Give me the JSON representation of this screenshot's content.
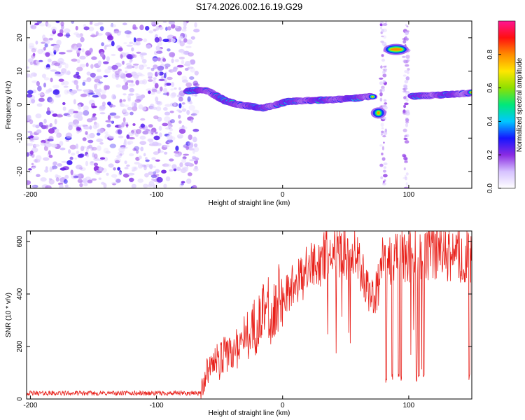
{
  "figure": {
    "title": "S174.2026.002.16.19.G29"
  },
  "chart_data": [
    {
      "type": "heatmap",
      "xlabel": "Height of straight line (km)",
      "ylabel": "Frequency (Hz)",
      "xlim": [
        -203,
        150
      ],
      "ylim": [
        -25,
        25
      ],
      "xticks": [
        -200,
        -100,
        0,
        100
      ],
      "yticks": [
        -20,
        -10,
        0,
        10,
        20
      ],
      "colorbar": {
        "label": "Normalized spectral amplitude",
        "range": [
          0,
          1
        ],
        "ticks": [
          "0.0",
          "0.2",
          "0.4",
          "0.6",
          "0.8"
        ],
        "stops": [
          "#ffffff",
          "#d6c2ff",
          "#8a2be2",
          "#1515ff",
          "#00c8ff",
          "#00e87a",
          "#8ee000",
          "#ffe600",
          "#ff8c00",
          "#ff1010",
          "#ff1493"
        ]
      },
      "ridge": {
        "x": [
          -75,
          -65,
          -58,
          -52,
          -45,
          -35,
          -25,
          -15,
          -5,
          5,
          20,
          40,
          60,
          72
        ],
        "y": [
          4,
          4.5,
          4,
          2.5,
          1,
          0,
          -0.5,
          -1,
          0,
          1,
          1.2,
          1.5,
          2,
          2.5
        ]
      },
      "ridge_right": {
        "x": [
          103,
          115,
          130,
          150
        ],
        "y": [
          2.5,
          2.7,
          3,
          3.5
        ]
      },
      "blobs": [
        {
          "x": 76,
          "y": -2.5,
          "value": 0.8
        },
        {
          "x": 90,
          "y": 16.5,
          "value": 0.8
        }
      ],
      "noise_region": {
        "x": [
          -203,
          -68
        ],
        "y": [
          -25,
          25
        ]
      },
      "gap_columns_x": [
        80,
        98
      ]
    },
    {
      "type": "line",
      "xlabel": "Height of straight line (km)",
      "ylabel": "SNR (10 * v/v)",
      "xlim": [
        -203,
        150
      ],
      "ylim": [
        0,
        640
      ],
      "xticks": [
        -200,
        -100,
        0,
        100
      ],
      "yticks": [
        0,
        200,
        400,
        600
      ],
      "series": [
        {
          "name": "SNR",
          "color": "#e8201a",
          "envelope_x": [
            -203,
            -65,
            -60,
            -50,
            -40,
            -30,
            -20,
            -10,
            0,
            10,
            20,
            30,
            40,
            50,
            55,
            60,
            65,
            70,
            75,
            80,
            90,
            100,
            110,
            120,
            130,
            140,
            150
          ],
          "envelope_y": [
            22,
            22,
            100,
            150,
            180,
            230,
            290,
            340,
            390,
            440,
            490,
            530,
            560,
            565,
            555,
            520,
            450,
            370,
            410,
            540,
            540,
            550,
            555,
            555,
            550,
            545,
            545
          ],
          "dropouts_x": [
            82,
            87,
            92,
            94,
            106,
            108,
            112,
            148
          ]
        }
      ]
    }
  ]
}
